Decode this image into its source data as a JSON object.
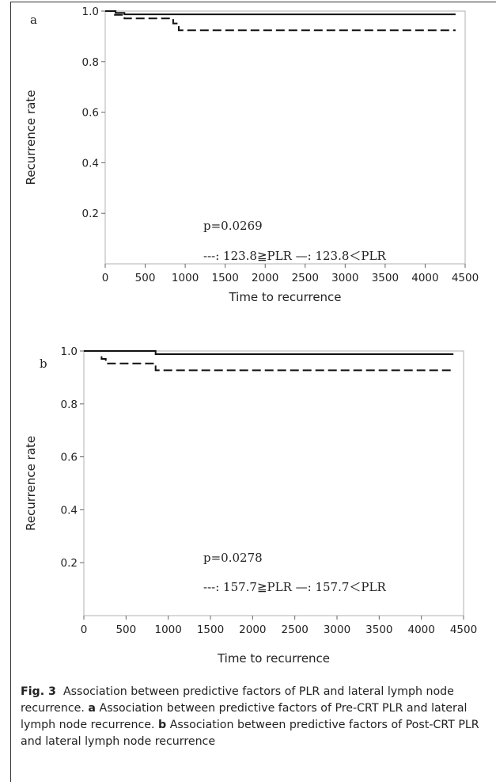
{
  "figure": {
    "caption": {
      "label": "Fig. 3",
      "intro": "Association between predictive factors of PLR and lateral lymph node recurrence.",
      "part_a_label": "a",
      "part_a_text": "Association between predictive factors of Pre-CRT PLR and lateral lymph node recurrence.",
      "part_b_label": "b",
      "part_b_text": "Association between predictive factors of Post-CRT PLR and lateral lymph node recurrence"
    }
  },
  "chart_data": [
    {
      "type": "line",
      "panel_label": "a",
      "xlabel": "Time to recurrence",
      "ylabel": "Recurrence rate",
      "xlim": [
        0,
        4500
      ],
      "ylim": [
        0,
        1.0
      ],
      "xticks": [
        "0",
        "500",
        "1000",
        "1500",
        "2000",
        "2500",
        "3000",
        "3500",
        "4000",
        "4500"
      ],
      "yticks": [
        "0.2",
        "0.4",
        "0.6",
        "0.8",
        "1.0"
      ],
      "annotation_p": "p=0.0269",
      "annotation_legend": "---: 123.8≧PLR   —: 123.8＜PLR",
      "series": [
        {
          "style": "solid",
          "x": [
            0,
            130,
            130,
            240,
            240,
            4380
          ],
          "y": [
            1.0,
            1.0,
            0.993,
            0.993,
            0.987,
            0.987
          ]
        },
        {
          "style": "dashed",
          "x": [
            0,
            110,
            110,
            240,
            240,
            850,
            850,
            920,
            920,
            4380
          ],
          "y": [
            1.0,
            1.0,
            0.985,
            0.985,
            0.971,
            0.971,
            0.951,
            0.951,
            0.924,
            0.924
          ]
        }
      ]
    },
    {
      "type": "line",
      "panel_label": "b",
      "xlabel": "Time to recurrence",
      "ylabel": "Recurrence rate",
      "xlim": [
        0,
        4500
      ],
      "ylim": [
        0,
        1.0
      ],
      "xticks": [
        "0",
        "500",
        "1000",
        "1500",
        "2000",
        "2500",
        "3000",
        "3500",
        "4000",
        "4500"
      ],
      "yticks": [
        "0.2",
        "0.4",
        "0.6",
        "0.8",
        "1.0"
      ],
      "annotation_p": "p=0.0278",
      "annotation_legend": "---: 157.7≧PLR   —: 157.7＜PLR",
      "series": [
        {
          "style": "solid",
          "x": [
            0,
            850,
            850,
            4380
          ],
          "y": [
            1.0,
            1.0,
            0.988,
            0.988
          ]
        },
        {
          "style": "dashed",
          "x": [
            210,
            210,
            260,
            260,
            850,
            850,
            4380
          ],
          "y": [
            0.98,
            0.97,
            0.97,
            0.953,
            0.953,
            0.927,
            0.927
          ]
        }
      ]
    }
  ]
}
